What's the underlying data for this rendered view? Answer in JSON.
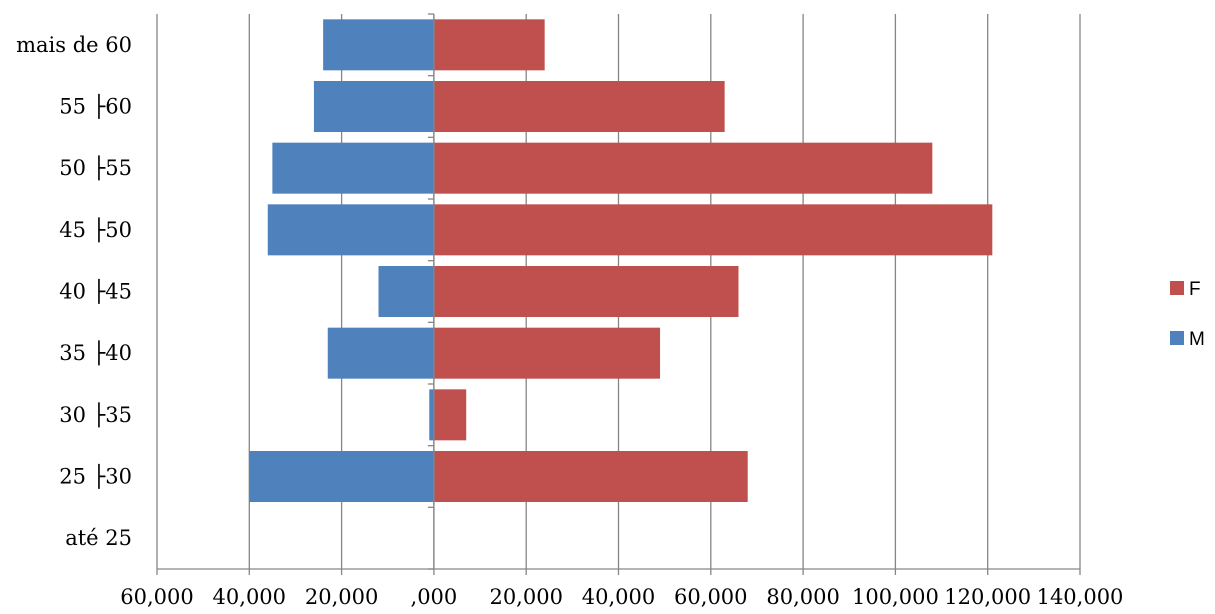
{
  "chart_data": {
    "type": "bar",
    "orientation": "horizontal",
    "categories": [
      "até 25",
      "25 ├30",
      "30 ├35",
      "35 ├40",
      "40 ├45",
      "45 ├50",
      "50 ├55",
      "55 ├60",
      "mais de 60"
    ],
    "series": [
      {
        "name": "M",
        "color": "#4F81BD",
        "values": [
          0,
          -40000,
          -1000,
          -23000,
          -12000,
          -36000,
          -35000,
          -26000,
          -24000
        ]
      },
      {
        "name": "F",
        "color": "#C0504D",
        "values": [
          0,
          68000,
          7000,
          49000,
          66000,
          121000,
          108000,
          63000,
          24000
        ]
      }
    ],
    "xlim": [
      -60000,
      140000
    ],
    "x_ticks": [
      -60000,
      -40000,
      -20000,
      0,
      20000,
      40000,
      60000,
      80000,
      100000,
      120000,
      140000
    ],
    "x_tick_labels": [
      "60,000",
      "40,000",
      "20,000",
      ",000",
      "20,000",
      "40,000",
      "60,000",
      "80,000",
      "100,000",
      "120,000",
      "140,000"
    ],
    "grid": "vertical",
    "legend_position": "right",
    "legend_entries": [
      "F",
      "M"
    ],
    "title": "",
    "xlabel": "",
    "ylabel": ""
  }
}
